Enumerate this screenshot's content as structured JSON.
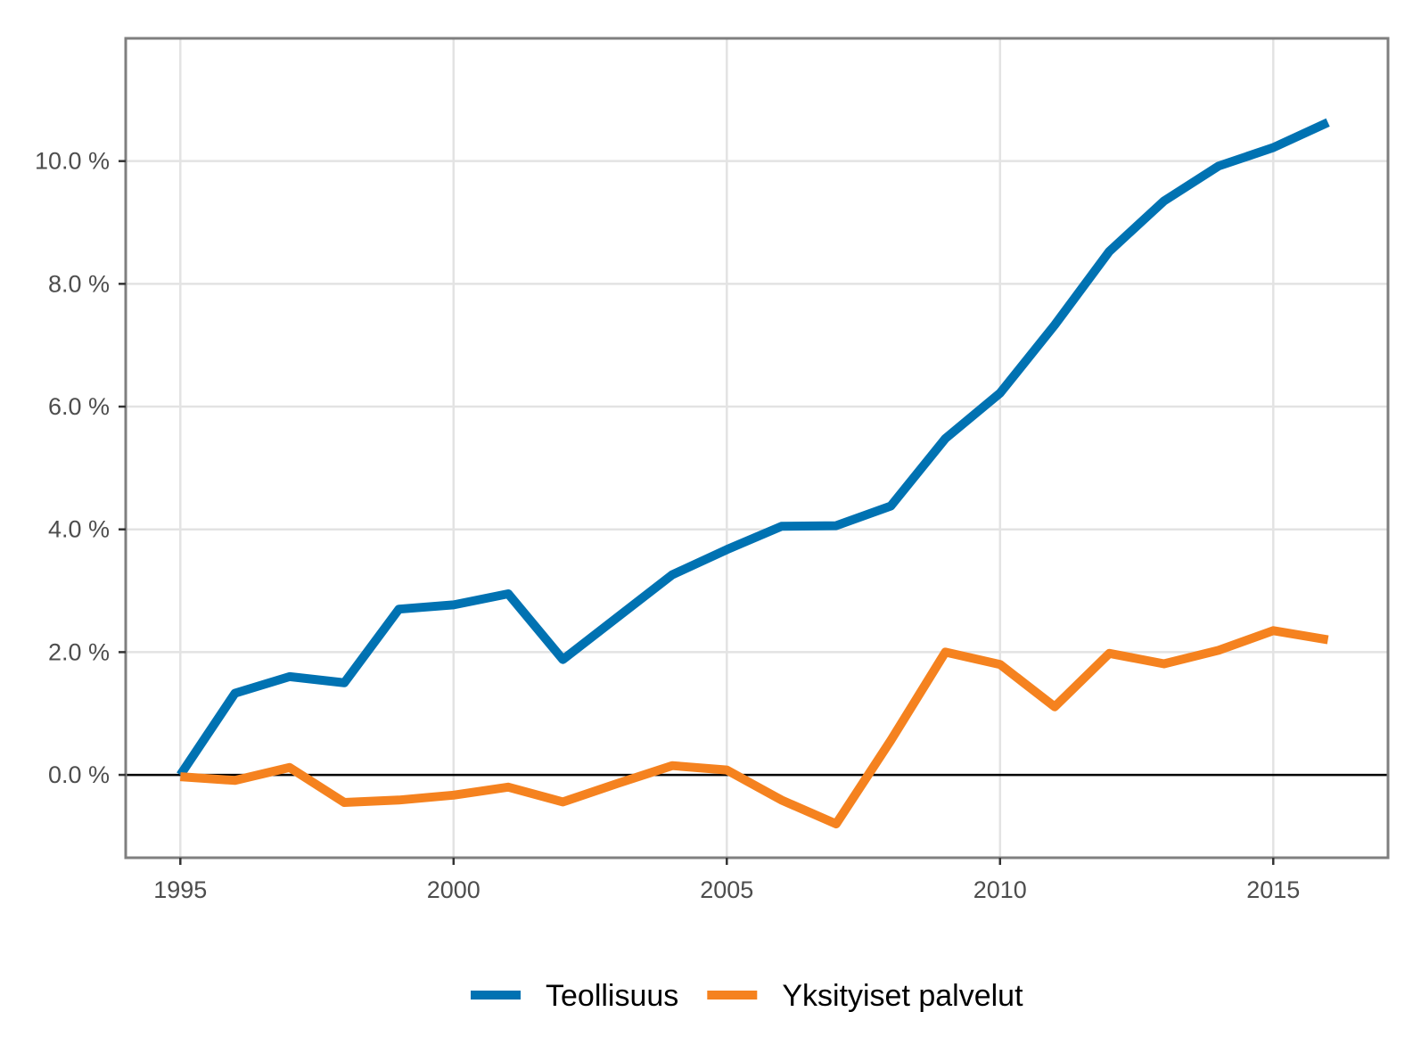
{
  "chart_data": {
    "type": "line",
    "title": "",
    "xlabel": "",
    "ylabel": "",
    "x": [
      1995,
      1996,
      1997,
      1998,
      1999,
      2000,
      2001,
      2002,
      2003,
      2004,
      2005,
      2006,
      2007,
      2008,
      2009,
      2010,
      2011,
      2012,
      2013,
      2014,
      2015,
      2016
    ],
    "xlim": [
      1994,
      2017.1
    ],
    "ylim": [
      -1.35,
      12.0
    ],
    "x_ticks": [
      1995,
      2000,
      2005,
      2010,
      2015
    ],
    "x_tick_labels": [
      "1995",
      "2000",
      "2005",
      "2010",
      "2015"
    ],
    "y_ticks": [
      0,
      2,
      4,
      6,
      8,
      10
    ],
    "y_tick_labels": [
      "0.0 %",
      "2.0 %",
      "4.0 %",
      "6.0 %",
      "8.0 %",
      "10.0 %"
    ],
    "grid": true,
    "reference_line_y": 0,
    "legend_position": "bottom",
    "series": [
      {
        "name": "Teollisuus",
        "color": "#0072b2",
        "values": [
          0.0,
          1.33,
          1.6,
          1.5,
          2.7,
          2.77,
          2.95,
          1.88,
          2.57,
          3.26,
          3.67,
          4.05,
          4.06,
          4.38,
          5.48,
          6.22,
          7.33,
          8.53,
          9.35,
          9.92,
          10.22,
          10.63
        ]
      },
      {
        "name": "Yksityiset palvelut",
        "color": "#f5821f",
        "values": [
          -0.03,
          -0.09,
          0.12,
          -0.45,
          -0.41,
          -0.33,
          -0.2,
          -0.44,
          -0.14,
          0.15,
          0.08,
          -0.41,
          -0.8,
          0.56,
          2.0,
          1.8,
          1.11,
          1.98,
          1.81,
          2.03,
          2.35,
          2.2
        ]
      }
    ]
  }
}
